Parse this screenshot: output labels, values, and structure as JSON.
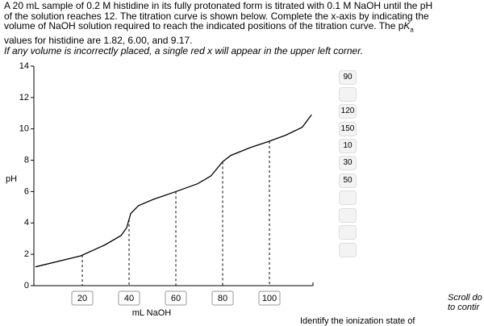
{
  "prompt": {
    "line1": "A 20 mL sample of 0.2 M histidine in its fully protonated form is titrated with 0.1 M NaOH until the pH",
    "line2": "of the solution reaches 12. The titration curve is shown below. Complete the x-axis by indicating the",
    "line3": "volume of NaOH solution required to reach the indicated positions of the titration curve. The p",
    "pk_letter": "K",
    "pk_sub": "a",
    "line4": "values for histidine are 1.82, 6.00, and 9.17.",
    "note": "If any volume is incorrectly placed, a single red x will appear in the upper left corner."
  },
  "chart_data": {
    "type": "line",
    "xlabel": "mL NaOH",
    "ylabel": "pH",
    "x": [
      0,
      19.3,
      29.7,
      36.6,
      39,
      40.7,
      44,
      50.3,
      60,
      69.3,
      75,
      80,
      83.4,
      91.7,
      99.7,
      107,
      114,
      118
    ],
    "series": [
      {
        "color": "#000000",
        "values": [
          1.2,
          1.9,
          2.6,
          3.2,
          3.7,
          4.6,
          5.1,
          5.5,
          6.0,
          6.5,
          7.0,
          7.9,
          8.3,
          8.8,
          9.2,
          9.6,
          10.1,
          10.9
        ]
      }
    ],
    "xlim": [
      0,
      120
    ],
    "ylim": [
      0,
      14
    ],
    "xticks": [
      20,
      40,
      60,
      80,
      100
    ],
    "yticks": [
      0,
      2,
      4,
      6,
      8,
      10,
      12,
      14
    ]
  },
  "answer_bank": [
    "90",
    "120",
    "150",
    "10",
    "30",
    "50"
  ],
  "scroll_hint": {
    "line1": "Scroll do",
    "line2": "to contir"
  },
  "next_question": "Identify the ionization state of"
}
